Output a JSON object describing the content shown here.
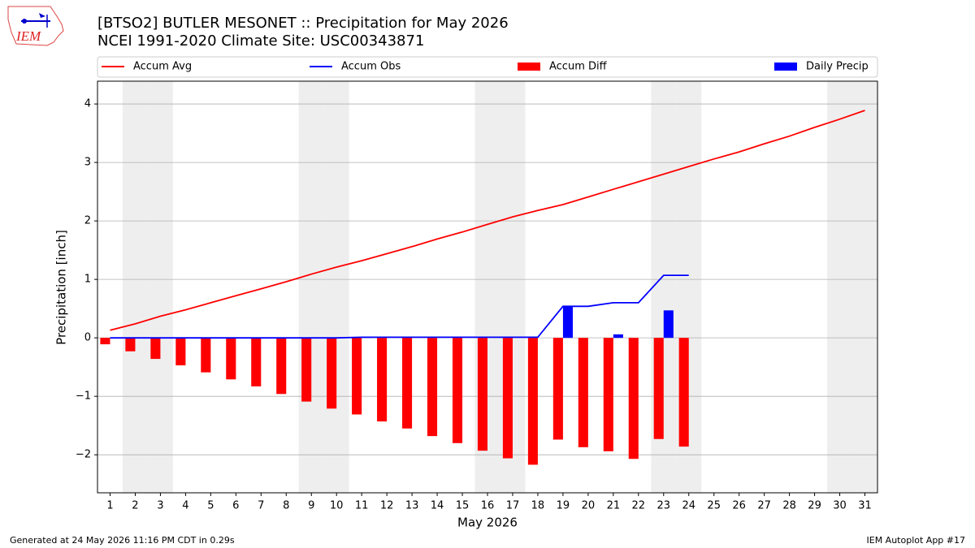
{
  "chart_data": {
    "type": "combo",
    "logo_text": "IEM",
    "title": "[BTSO2] BUTLER MESONET :: Precipitation for May 2026",
    "subtitle": "NCEI 1991-2020 Climate Site: USC00343871",
    "xlabel": "May 2026",
    "ylabel": "Precipitation [inch]",
    "x": [
      1,
      2,
      3,
      4,
      5,
      6,
      7,
      8,
      9,
      10,
      11,
      12,
      13,
      14,
      15,
      16,
      17,
      18,
      19,
      20,
      21,
      22,
      23,
      24,
      25,
      26,
      27,
      28,
      29,
      30,
      31
    ],
    "xlim": [
      0.5,
      31.5
    ],
    "xticks": [
      1,
      2,
      3,
      4,
      5,
      6,
      7,
      8,
      9,
      10,
      11,
      12,
      13,
      14,
      15,
      16,
      17,
      18,
      19,
      20,
      21,
      22,
      23,
      24,
      25,
      26,
      27,
      28,
      29,
      30,
      31
    ],
    "ylim": [
      -2.65,
      4.39
    ],
    "yticks": [
      {
        "value": -2,
        "label": "−2"
      },
      {
        "value": -1,
        "label": "−1"
      },
      0,
      1,
      2,
      3,
      4
    ],
    "grid": true,
    "shaded_days": [
      2,
      3,
      9,
      10,
      16,
      17,
      23,
      24,
      30,
      31
    ],
    "legend": "top",
    "series": [
      {
        "name": "Accum Avg",
        "kind": "line",
        "color": "#ff0000",
        "values": [
          0.13,
          0.24,
          0.37,
          0.48,
          0.6,
          0.72,
          0.84,
          0.96,
          1.09,
          1.21,
          1.32,
          1.44,
          1.56,
          1.69,
          1.81,
          1.94,
          2.07,
          2.18,
          2.28,
          2.41,
          2.54,
          2.67,
          2.8,
          2.93,
          3.06,
          3.18,
          3.32,
          3.45,
          3.6,
          3.74,
          3.89
        ]
      },
      {
        "name": "Accum Obs",
        "kind": "line",
        "color": "#0000ff",
        "values": [
          0,
          0,
          0,
          0,
          0,
          0,
          0,
          0,
          0,
          0,
          0.01,
          0.01,
          0.01,
          0.01,
          0.01,
          0.01,
          0.01,
          0.01,
          0.54,
          0.54,
          0.6,
          0.6,
          1.07,
          1.07,
          null,
          null,
          null,
          null,
          null,
          null,
          null
        ]
      },
      {
        "name": "Accum Diff",
        "kind": "bar",
        "color": "#ff0000",
        "values": [
          -0.11,
          -0.23,
          -0.36,
          -0.47,
          -0.59,
          -0.71,
          -0.83,
          -0.96,
          -1.09,
          -1.21,
          -1.31,
          -1.43,
          -1.55,
          -1.68,
          -1.8,
          -1.93,
          -2.06,
          -2.17,
          -1.74,
          -1.87,
          -1.94,
          -2.07,
          -1.73,
          -1.86,
          null,
          null,
          null,
          null,
          null,
          null,
          null
        ]
      },
      {
        "name": "Daily Precip",
        "kind": "bar",
        "color": "#0000ff",
        "values": [
          0,
          0,
          0,
          0,
          0,
          0,
          0,
          0,
          0,
          0,
          0.01,
          0,
          0,
          0,
          0,
          0,
          0,
          0,
          0.53,
          0,
          0.06,
          0,
          0.47,
          0,
          null,
          null,
          null,
          null,
          null,
          null,
          null
        ]
      }
    ],
    "footer_left": "Generated at 24 May 2026 11:16 PM CDT in 0.29s",
    "footer_right": "IEM Autoplot App #17"
  }
}
